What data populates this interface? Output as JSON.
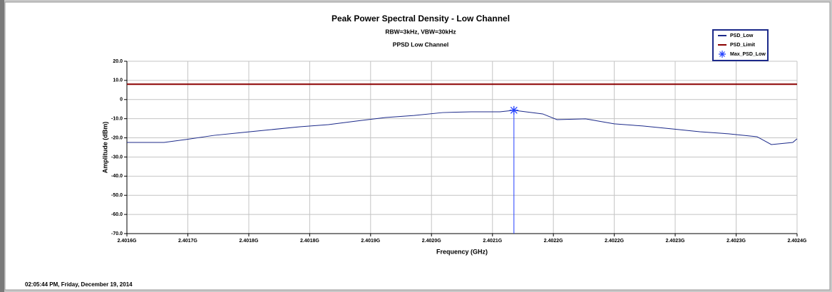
{
  "chart_data": {
    "type": "line",
    "title": "Peak Power Spectral Density - Low Channel",
    "subtitle": "RBW=3kHz, VBW=30kHz",
    "plot_title": "PPSD Low Channel",
    "x_label": "Frequency (GHz)",
    "y_label": "Amplitude (dBm)",
    "timestamp": "02:05:44 PM, Friday, December 19, 2014",
    "xlim": [
      2.4016,
      2.4024
    ],
    "ylim": [
      -70,
      20
    ],
    "grid": true,
    "legend": "top-right",
    "xticks": [
      {
        "value": 2.4016,
        "label": "2.4016G"
      },
      {
        "value": 2.4016727,
        "label": "2.4017G"
      },
      {
        "value": 2.4017455,
        "label": "2.4018G"
      },
      {
        "value": 2.4018182,
        "label": "2.4018G"
      },
      {
        "value": 2.4018909,
        "label": "2.4019G"
      },
      {
        "value": 2.4019636,
        "label": "2.4020G"
      },
      {
        "value": 2.4020364,
        "label": "2.4021G"
      },
      {
        "value": 2.4021091,
        "label": "2.4022G"
      },
      {
        "value": 2.4021818,
        "label": "2.4022G"
      },
      {
        "value": 2.4022545,
        "label": "2.4023G"
      },
      {
        "value": 2.4023273,
        "label": "2.4023G"
      },
      {
        "value": 2.4024,
        "label": "2.4024G"
      }
    ],
    "yticks": [
      {
        "value": 20,
        "label": "20.0"
      },
      {
        "value": 10,
        "label": "10.0"
      },
      0,
      {
        "value": -10,
        "label": "-10.0"
      },
      {
        "value": -20,
        "label": "-20.0"
      },
      {
        "value": -30,
        "label": "-30.0"
      },
      {
        "value": -40,
        "label": "-40.0"
      },
      {
        "value": -50,
        "label": "-50.0"
      },
      {
        "value": -60,
        "label": "-60.0"
      },
      {
        "value": -70,
        "label": "-70.0"
      }
    ],
    "series": [
      {
        "name": "PSD_Low",
        "color": "#1c2a8a",
        "style": "line",
        "x": [
          2.4016,
          2.4016443,
          2.4016699,
          2.4017041,
          2.4017382,
          2.4017723,
          2.4018064,
          2.4018405,
          2.4018746,
          2.4019087,
          2.4019429,
          2.401977,
          2.4020111,
          2.4020452,
          2.402062,
          2.4020964,
          2.4021134,
          2.4021475,
          2.4021817,
          2.4022158,
          2.4022499,
          2.402284,
          2.4023181,
          2.4023522,
          2.4023693,
          2.4023949,
          2.4024
        ],
        "values": [
          -22.4,
          -22.4,
          -20.9,
          -18.7,
          -17.2,
          -15.7,
          -14.2,
          -13.1,
          -11.2,
          -9.4,
          -8.3,
          -6.8,
          -6.4,
          -6.4,
          -5.6,
          -7.5,
          -10.5,
          -10.1,
          -12.7,
          -13.8,
          -15.3,
          -16.8,
          -17.9,
          -19.4,
          -23.5,
          -22.4,
          -20.5
        ]
      },
      {
        "name": "PSD_Limit",
        "color": "#8b0000",
        "style": "line",
        "x": [
          2.4016,
          2.4024
        ],
        "values": [
          8,
          8
        ]
      },
      {
        "name": "Max_PSD_Low",
        "color": "#2340ff",
        "style": "marker",
        "x": [
          2.402062
        ],
        "values": [
          -5.6
        ]
      }
    ]
  }
}
